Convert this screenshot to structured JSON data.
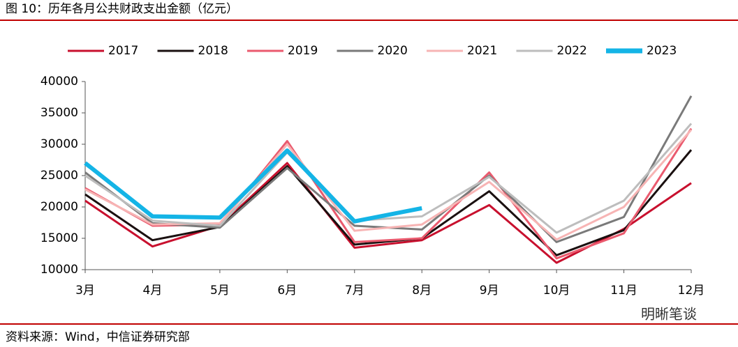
{
  "chart_data": {
    "type": "line",
    "title": "图 10：历年各月公共财政支出金额（亿元）",
    "source": "资料来源：Wind，中信证券研究部",
    "watermark": "明晰笔谈",
    "categories": [
      "3月",
      "4月",
      "5月",
      "6月",
      "7月",
      "8月",
      "9月",
      "10月",
      "11月",
      "12月"
    ],
    "series": [
      {
        "name": "2017",
        "color": "#c8102e",
        "values": [
          21000,
          13700,
          17000,
          27000,
          13500,
          14700,
          20300,
          11100,
          16500,
          23800
        ]
      },
      {
        "name": "2018",
        "color": "#1a1010",
        "values": [
          22000,
          14700,
          16800,
          26500,
          14000,
          15000,
          22500,
          12300,
          16300,
          29100
        ]
      },
      {
        "name": "2019",
        "color": "#ea5a6e",
        "values": [
          23000,
          17000,
          17200,
          30500,
          14400,
          15000,
          25500,
          11800,
          15800,
          32500
        ]
      },
      {
        "name": "2020",
        "color": "#7a7a7a",
        "values": [
          25500,
          17400,
          16700,
          26200,
          17000,
          16400,
          25000,
          14400,
          18400,
          37700
        ]
      },
      {
        "name": "2021",
        "color": "#f7b4b4",
        "values": [
          22800,
          17200,
          17400,
          30000,
          16200,
          17200,
          24000,
          14800,
          20000,
          32300
        ]
      },
      {
        "name": "2022",
        "color": "#bdbdbd",
        "values": [
          25000,
          17800,
          17000,
          28700,
          17800,
          18500,
          24800,
          15900,
          21000,
          33300
        ]
      },
      {
        "name": "2023",
        "color": "#14b4e6",
        "values": [
          27000,
          18500,
          18300,
          29000,
          17700,
          19800,
          null,
          null,
          null,
          null
        ]
      }
    ],
    "ylim": [
      10000,
      40000
    ],
    "yticks": [
      10000,
      15000,
      20000,
      25000,
      30000,
      35000,
      40000
    ],
    "legend": "top"
  }
}
